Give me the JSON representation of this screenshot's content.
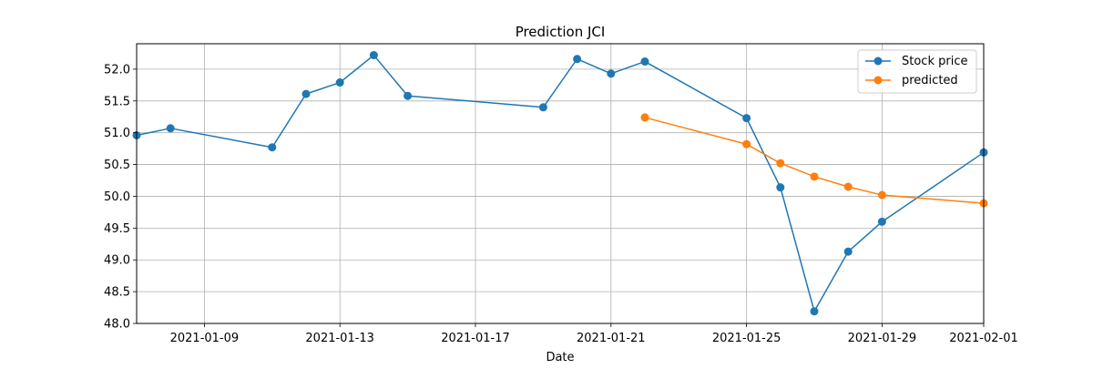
{
  "chart_data": {
    "type": "line",
    "title": "Prediction JCI",
    "xlabel": "Date",
    "ylabel": "",
    "xlim": [
      "2021-01-07",
      "2021-02-01"
    ],
    "ylim": [
      48.0,
      52.4
    ],
    "grid": true,
    "legend_position": "top-right",
    "x_ticks": [
      "2021-01-09",
      "2021-01-13",
      "2021-01-17",
      "2021-01-21",
      "2021-01-25",
      "2021-01-29",
      "2021-02-01"
    ],
    "y_ticks": [
      "48.0",
      "48.5",
      "49.0",
      "49.5",
      "50.0",
      "50.5",
      "51.0",
      "51.5",
      "52.0"
    ],
    "series": [
      {
        "name": "Stock price",
        "color": "#1f77b4",
        "marker": "circle",
        "points": [
          {
            "x": "2021-01-07",
            "y": 50.96
          },
          {
            "x": "2021-01-08",
            "y": 51.07
          },
          {
            "x": "2021-01-11",
            "y": 50.77
          },
          {
            "x": "2021-01-12",
            "y": 51.61
          },
          {
            "x": "2021-01-13",
            "y": 51.79
          },
          {
            "x": "2021-01-14",
            "y": 52.22
          },
          {
            "x": "2021-01-15",
            "y": 51.58
          },
          {
            "x": "2021-01-19",
            "y": 51.4
          },
          {
            "x": "2021-01-20",
            "y": 52.16
          },
          {
            "x": "2021-01-21",
            "y": 51.93
          },
          {
            "x": "2021-01-22",
            "y": 52.12
          },
          {
            "x": "2021-01-25",
            "y": 51.23
          },
          {
            "x": "2021-01-26",
            "y": 50.14
          },
          {
            "x": "2021-01-27",
            "y": 48.19
          },
          {
            "x": "2021-01-28",
            "y": 49.13
          },
          {
            "x": "2021-01-29",
            "y": 49.6
          },
          {
            "x": "2021-02-01",
            "y": 50.69
          }
        ]
      },
      {
        "name": "predicted",
        "color": "#ff7f0e",
        "marker": "circle",
        "points": [
          {
            "x": "2021-01-22",
            "y": 51.24
          },
          {
            "x": "2021-01-25",
            "y": 50.82
          },
          {
            "x": "2021-01-26",
            "y": 50.52
          },
          {
            "x": "2021-01-27",
            "y": 50.31
          },
          {
            "x": "2021-01-28",
            "y": 50.15
          },
          {
            "x": "2021-01-29",
            "y": 50.02
          },
          {
            "x": "2021-02-01",
            "y": 49.89
          }
        ]
      }
    ]
  }
}
